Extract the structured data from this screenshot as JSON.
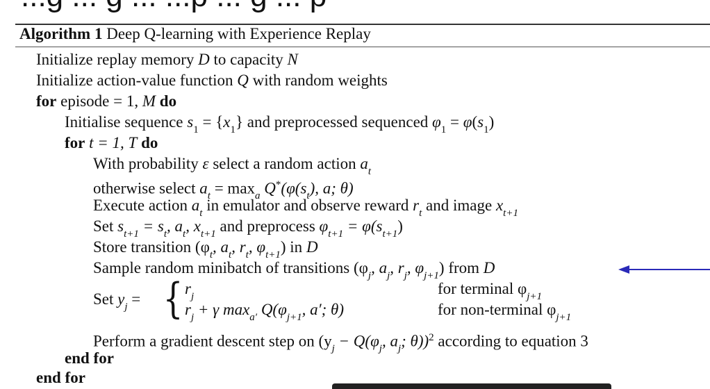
{
  "heading_cut": "...g ... g ... ...p ... g ... p",
  "algorithm": {
    "label": "Algorithm 1",
    "title": "Deep Q-learning with Experience Replay",
    "lines": {
      "l1a": "Initialize replay memory ",
      "l1b": "D",
      "l1c": " to capacity ",
      "l1d": "N",
      "l2a": "Initialize action-value function ",
      "l2b": "Q",
      "l2c": " with random weights",
      "l3kw": "for",
      "l3a": " episode = 1, ",
      "l3b": "M",
      "l3kw2": " do",
      "l4a": "Initialise sequence ",
      "l4b": "s",
      "l4c": "1",
      "l4d": " = {",
      "l4e": "x",
      "l4f": "1",
      "l4g": "} and preprocessed sequenced ",
      "l4h": "φ",
      "l4i": "1",
      "l4j": " = ",
      "l4k": "φ",
      "l4l": "(",
      "l4m": "s",
      "l4n": "1",
      "l4o": ")",
      "l5kw": "for",
      "l5a": " t = 1, ",
      "l5b": "T",
      "l5kw2": " do",
      "l6a": "With probability ",
      "l6b": "ε",
      "l6c": " select a random action ",
      "l6d": "a",
      "l6e": "t",
      "l7a": "otherwise select ",
      "l7b": "a",
      "l7c": "t",
      "l7d": " = max",
      "l7e": "a",
      "l7f": " Q",
      "l7g": "*",
      "l7h": "(φ(s",
      "l7i": "t",
      "l7j": "), a; θ)",
      "l8a": "Execute action ",
      "l8b": "a",
      "l8c": "t",
      "l8d": " in emulator and observe reward ",
      "l8e": "r",
      "l8f": "t",
      "l8g": " and image ",
      "l8h": "x",
      "l8i": "t+1",
      "l9a": "Set ",
      "l9b": "s",
      "l9c": "t+1",
      "l9d": " = s",
      "l9e": "t",
      "l9f": ", a",
      "l9g": "t",
      "l9h": ", x",
      "l9i": "t+1",
      "l9j": " and preprocess ",
      "l9k": "φ",
      "l9l": "t+1",
      "l9m": " = φ(s",
      "l9n": "t+1",
      "l9o": ")",
      "l10a": "Store transition (φ",
      "l10b": "t",
      "l10c": ", a",
      "l10d": "t",
      "l10e": ", r",
      "l10f": "t",
      "l10g": ", φ",
      "l10h": "t+1",
      "l10i": ") in ",
      "l10j": "D",
      "l11a": "Sample random minibatch of transitions (φ",
      "l11b": "j",
      "l11c": ", a",
      "l11d": "j",
      "l11e": ", r",
      "l11f": "j",
      "l11g": ", φ",
      "l11h": "j+1",
      "l11i": ") from ",
      "l11j": "D",
      "l12a": "Set ",
      "l12b": "y",
      "l12c": "j",
      "l12d": " =",
      "case1a": "r",
      "case1b": "j",
      "case1cond": "for terminal φ",
      "case1condsub": "j+1",
      "case2a": "r",
      "case2b": "j",
      "case2c": " + γ max",
      "case2d": "a′",
      "case2e": " Q(φ",
      "case2f": "j+1",
      "case2g": ", a′; θ)",
      "case2cond": "for non-terminal φ",
      "case2condsub": "j+1",
      "l13a": "Perform a gradient descent step on (y",
      "l13b": "j",
      "l13c": " − Q(φ",
      "l13d": "j",
      "l13e": ", a",
      "l13f": "j",
      "l13g": "; θ))",
      "l13h": "2",
      "l13i": " according to equation 3",
      "l14kw": "end for",
      "l15kw": "end for"
    }
  },
  "arrow": {
    "color": "#2a2ab8",
    "icon": "left-arrow-icon"
  }
}
